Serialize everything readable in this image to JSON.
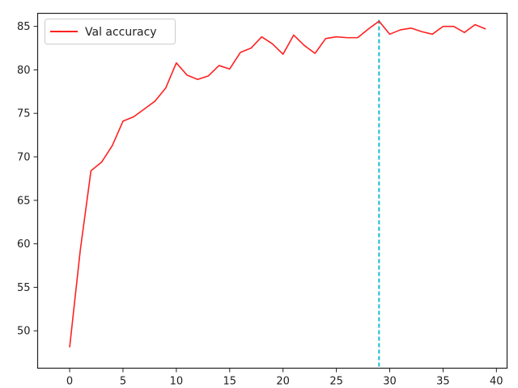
{
  "chart_data": {
    "type": "line",
    "title": "",
    "xlabel": "",
    "ylabel": "",
    "xlim": [
      -3,
      41
    ],
    "ylim": [
      45.7,
      86.5
    ],
    "xticks": [
      0,
      5,
      10,
      15,
      20,
      25,
      30,
      35,
      40
    ],
    "yticks": [
      50,
      55,
      60,
      65,
      70,
      75,
      80,
      85
    ],
    "grid": false,
    "legend_position": "top-left",
    "series": [
      {
        "name": "Val accuracy",
        "color": "#ff2020",
        "x": [
          0,
          1,
          2,
          3,
          4,
          5,
          6,
          7,
          8,
          9,
          10,
          11,
          12,
          13,
          14,
          15,
          16,
          17,
          18,
          19,
          20,
          21,
          22,
          23,
          24,
          25,
          26,
          27,
          28,
          29,
          30,
          31,
          32,
          33,
          34,
          35,
          36,
          37,
          38,
          39
        ],
        "values": [
          48.1,
          59.3,
          68.4,
          69.4,
          71.3,
          74.1,
          74.6,
          75.5,
          76.4,
          77.9,
          80.8,
          79.4,
          78.9,
          79.3,
          80.5,
          80.1,
          82.0,
          82.5,
          83.8,
          83.0,
          81.8,
          84.0,
          82.8,
          81.9,
          83.6,
          83.8,
          83.7,
          83.7,
          84.7,
          85.6,
          84.1,
          84.6,
          84.8,
          84.4,
          84.1,
          85.0,
          85.0,
          84.3,
          85.2,
          84.7
        ]
      }
    ],
    "vline": {
      "x": 29,
      "color": "#17becf",
      "style": "dashed"
    }
  }
}
